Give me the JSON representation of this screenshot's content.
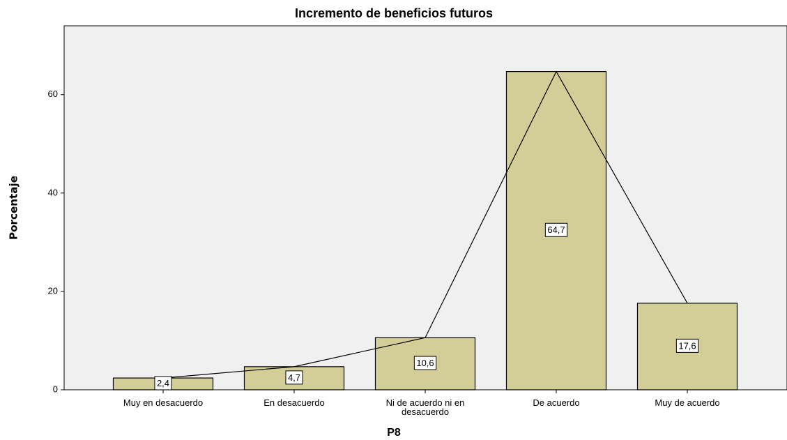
{
  "chart_data": {
    "type": "bar",
    "title": "Incremento de beneficios futuros",
    "x_label": "P8",
    "y_label": "Porcentaje",
    "categories": [
      "Muy en desacuerdo",
      "En desacuerdo",
      "Ni de acuerdo ni en desacuerdo",
      "De acuerdo",
      "Muy de acuerdo"
    ],
    "values": [
      2.4,
      4.7,
      10.6,
      64.7,
      17.6
    ],
    "value_labels": [
      "2,4",
      "4,7",
      "10,6",
      "64,7",
      "17,6"
    ],
    "color": "#d3ce97",
    "line": true,
    "ylim": [
      0,
      74
    ],
    "yticks": [
      0,
      20,
      40,
      60
    ],
    "grid": false
  }
}
